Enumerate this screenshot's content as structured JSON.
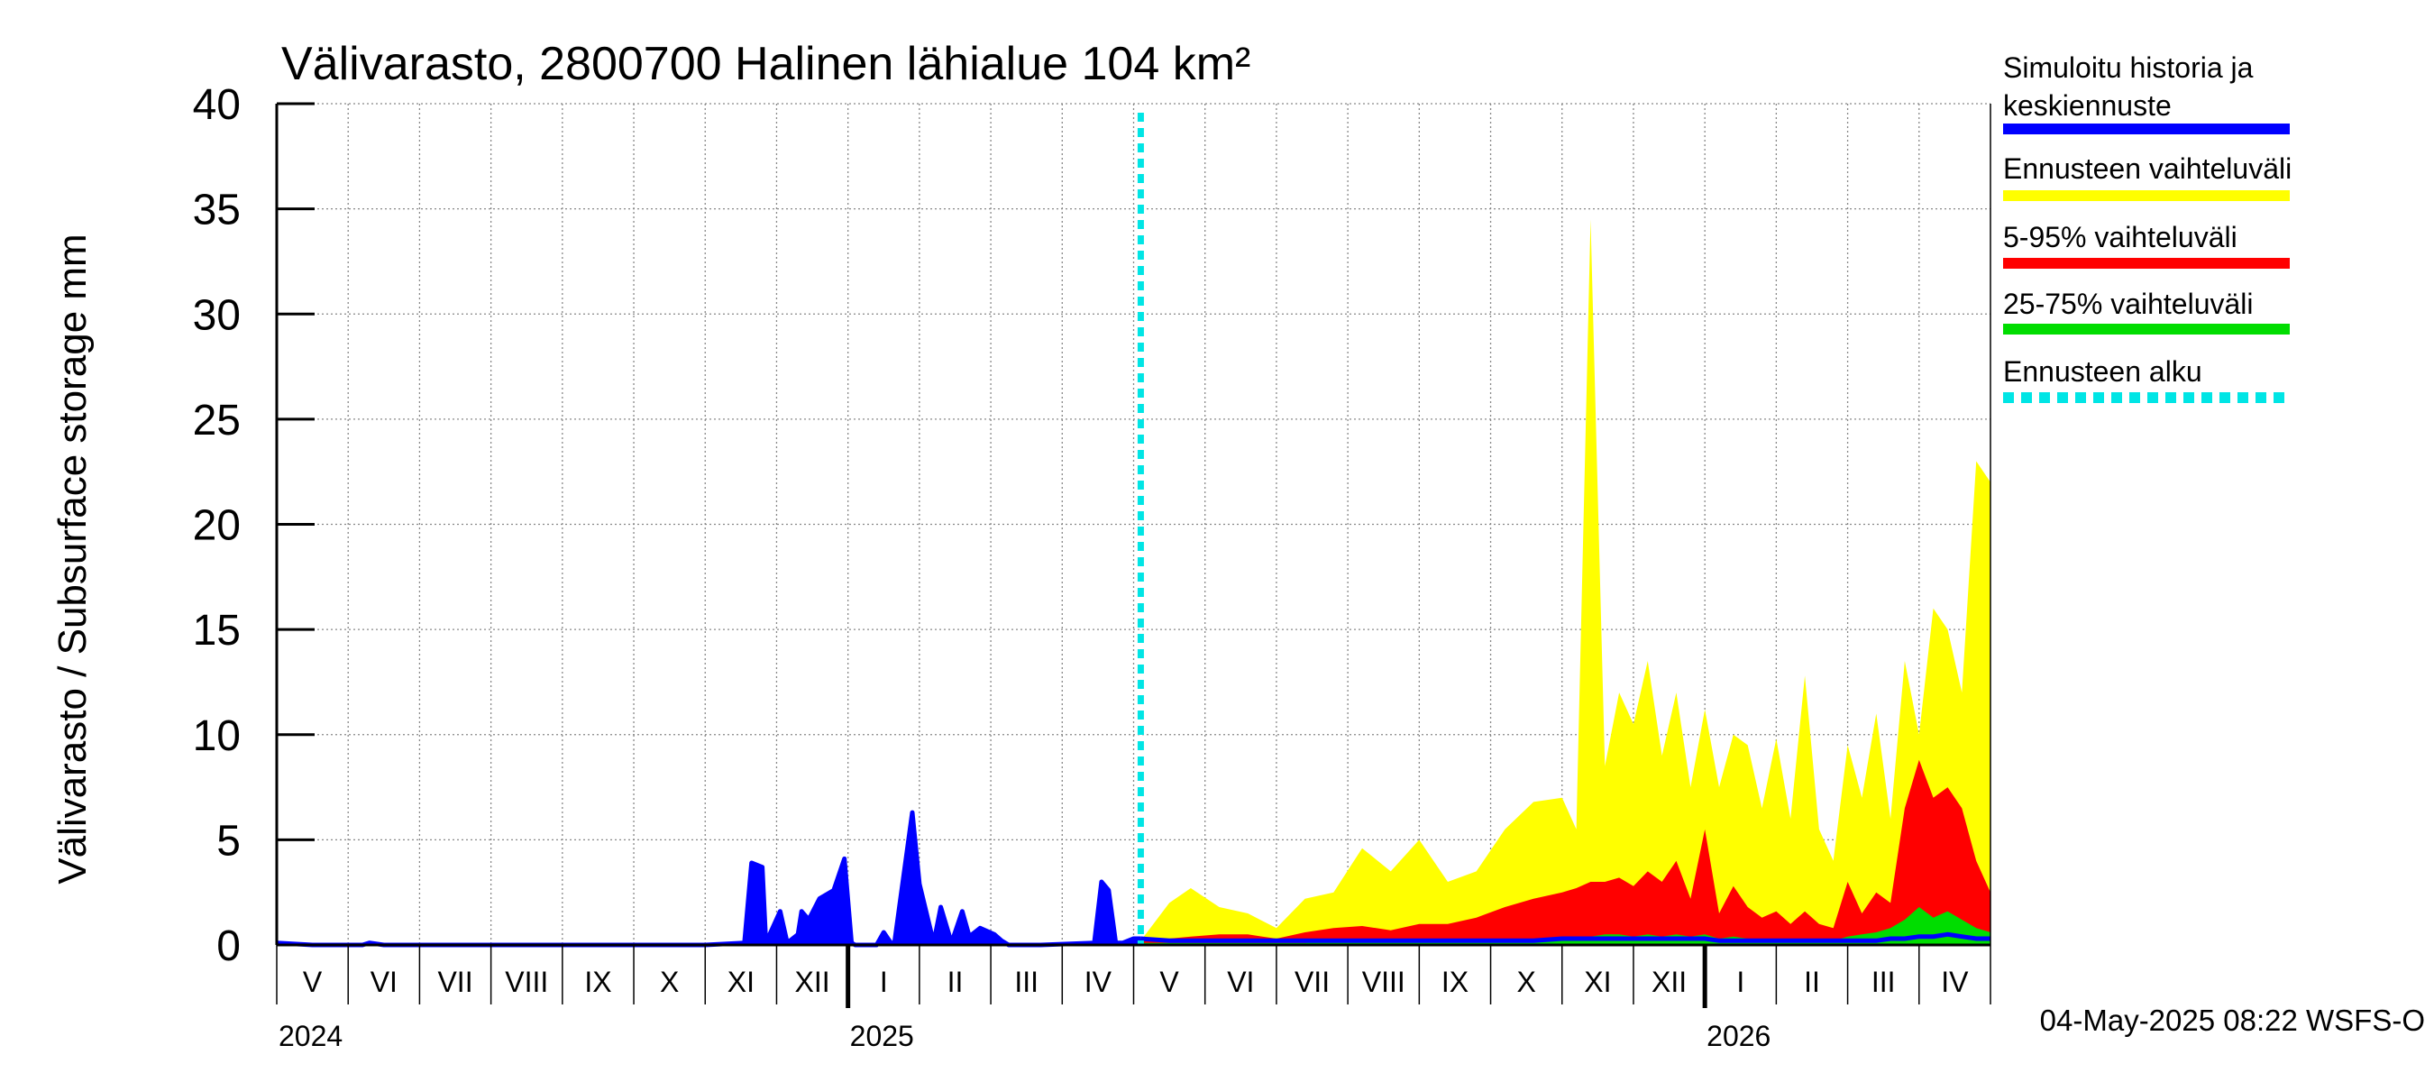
{
  "chart_data": {
    "type": "area",
    "title": "Välivarasto, 2800700 Halinen lähialue 104 km²",
    "ylabel": "Välivarasto / Subsurface storage  mm",
    "xlabel": "",
    "ylim": [
      0,
      40
    ],
    "yticks": [
      0,
      5,
      10,
      15,
      20,
      25,
      30,
      35,
      40
    ],
    "x_unit": "months since 2024-05-01",
    "xlim": [
      0,
      24
    ],
    "grid": true,
    "legend_position": "right",
    "forecast_start": 12.1,
    "timestamp": "04-May-2025 08:22 WSFS-O",
    "month_labels": [
      "V",
      "VI",
      "VII",
      "VIII",
      "IX",
      "X",
      "XI",
      "XII",
      "I",
      "II",
      "III",
      "IV",
      "V",
      "VI",
      "VII",
      "VIII",
      "IX",
      "X",
      "XI",
      "XII",
      "I",
      "II",
      "III",
      "IV"
    ],
    "years": [
      {
        "label": "2024",
        "month_index": 0
      },
      {
        "label": "2025",
        "month_index": 8
      },
      {
        "label": "2026",
        "month_index": 20
      }
    ],
    "legend": [
      {
        "key": "history",
        "label": "Simuloitu historia ja keskiennuste",
        "color": "#0000ff"
      },
      {
        "key": "range",
        "label": "Ennusteen vaihteluväli",
        "color": "#ffff00"
      },
      {
        "key": "p5_95",
        "label": "5-95% vaihteluväli",
        "color": "#ff0000"
      },
      {
        "key": "p25_75",
        "label": "25-75% vaihteluväli",
        "color": "#00dd00"
      },
      {
        "key": "start",
        "label": "Ennusteen alku",
        "color": "#00e5e5"
      }
    ],
    "history": {
      "x": [
        0,
        0.5,
        1.2,
        1.3,
        1.5,
        3,
        6,
        6.55,
        6.65,
        6.8,
        6.85,
        7.05,
        7.15,
        7.3,
        7.35,
        7.45,
        7.6,
        7.8,
        7.95,
        8.05,
        8.1,
        8.4,
        8.5,
        8.6,
        8.65,
        8.9,
        9.0,
        9.1,
        9.2,
        9.3,
        9.45,
        9.6,
        9.7,
        9.85,
        10.05,
        10.15,
        10.25,
        10.7,
        11.45,
        11.55,
        11.65,
        11.75,
        11.85,
        12.0,
        12.1
      ],
      "y": [
        0.1,
        0.0,
        0.0,
        0.1,
        0.0,
        0.0,
        0.0,
        0.1,
        3.9,
        3.7,
        0.1,
        1.6,
        0.1,
        0.5,
        1.6,
        1.2,
        2.2,
        2.6,
        4.1,
        0.1,
        0.0,
        0.0,
        0.6,
        0.1,
        0.1,
        6.3,
        2.9,
        1.5,
        0.1,
        1.8,
        0.1,
        1.6,
        0.4,
        0.8,
        0.5,
        0.2,
        0.0,
        0.0,
        0.1,
        3.0,
        2.6,
        0.1,
        0.1,
        0.3,
        0.3
      ]
    },
    "forecast": {
      "x": [
        12.1,
        12.5,
        12.8,
        13.2,
        13.6,
        14.0,
        14.4,
        14.8,
        15.2,
        15.6,
        16.0,
        16.4,
        16.8,
        17.2,
        17.6,
        18.0,
        18.2,
        18.4,
        18.6,
        18.8,
        19.0,
        19.2,
        19.4,
        19.6,
        19.8,
        20.0,
        20.2,
        20.4,
        20.6,
        20.8,
        21.0,
        21.2,
        21.4,
        21.6,
        21.8,
        22.0,
        22.2,
        22.4,
        22.6,
        22.8,
        23.0,
        23.2,
        23.4,
        23.6,
        23.8,
        24.0
      ],
      "range_max": [
        0.2,
        2.0,
        2.7,
        1.8,
        1.5,
        0.8,
        2.2,
        2.5,
        4.6,
        3.5,
        5.0,
        3.0,
        3.5,
        5.5,
        6.8,
        7.0,
        5.5,
        34.5,
        8.5,
        12.0,
        10.5,
        13.5,
        9.0,
        12.0,
        7.5,
        11.2,
        7.5,
        10.0,
        9.5,
        6.5,
        9.8,
        6.0,
        12.8,
        5.5,
        4.0,
        9.5,
        7.0,
        11.0,
        6.0,
        13.5,
        10.0,
        16.0,
        15.0,
        12.0,
        23.0,
        22.0
      ],
      "p5_95_max": [
        0.2,
        0.3,
        0.4,
        0.5,
        0.5,
        0.3,
        0.6,
        0.8,
        0.9,
        0.7,
        1.0,
        1.0,
        1.3,
        1.8,
        2.2,
        2.5,
        2.7,
        3.0,
        3.0,
        3.2,
        2.8,
        3.5,
        3.0,
        4.0,
        2.2,
        5.5,
        1.5,
        2.8,
        1.8,
        1.3,
        1.6,
        1.0,
        1.6,
        1.0,
        0.8,
        3.0,
        1.5,
        2.5,
        2.0,
        6.5,
        8.8,
        7.0,
        7.5,
        6.5,
        4.0,
        2.5
      ],
      "p25_75_max": [
        0.1,
        0.1,
        0.1,
        0.1,
        0.1,
        0.1,
        0.1,
        0.2,
        0.2,
        0.2,
        0.2,
        0.2,
        0.2,
        0.3,
        0.3,
        0.4,
        0.4,
        0.4,
        0.5,
        0.5,
        0.4,
        0.5,
        0.4,
        0.5,
        0.4,
        0.5,
        0.3,
        0.4,
        0.3,
        0.3,
        0.3,
        0.2,
        0.3,
        0.2,
        0.2,
        0.4,
        0.5,
        0.6,
        0.8,
        1.2,
        1.8,
        1.3,
        1.6,
        1.2,
        0.8,
        0.6
      ],
      "mean": [
        0.3,
        0.2,
        0.2,
        0.2,
        0.2,
        0.2,
        0.2,
        0.2,
        0.2,
        0.2,
        0.2,
        0.2,
        0.2,
        0.2,
        0.2,
        0.3,
        0.3,
        0.3,
        0.3,
        0.3,
        0.3,
        0.3,
        0.3,
        0.3,
        0.3,
        0.3,
        0.2,
        0.2,
        0.2,
        0.2,
        0.2,
        0.2,
        0.2,
        0.2,
        0.2,
        0.2,
        0.2,
        0.2,
        0.3,
        0.3,
        0.4,
        0.4,
        0.5,
        0.4,
        0.3,
        0.3
      ]
    }
  }
}
